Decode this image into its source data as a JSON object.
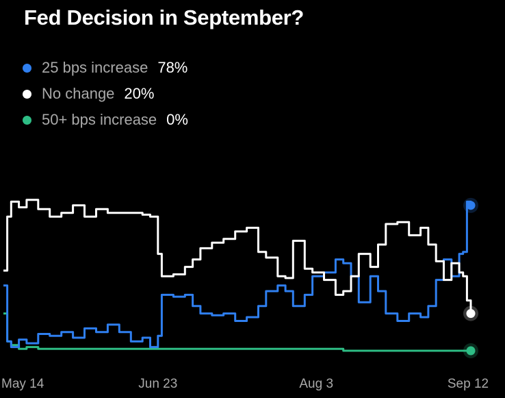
{
  "title": "Fed Decision in September?",
  "colors": {
    "background": "#000000",
    "increase_25": "#2f7ff0",
    "no_change": "#ffffff",
    "increase_50plus": "#2ebd85"
  },
  "legend": [
    {
      "label": "25 bps increase",
      "value": "78%",
      "color": "#2f7ff0"
    },
    {
      "label": "No change",
      "value": "20%",
      "color": "#ffffff"
    },
    {
      "label": "50+ bps increase",
      "value": "0%",
      "color": "#2ebd85"
    }
  ],
  "chart_data": {
    "type": "line",
    "title": "Fed Decision in September?",
    "x_ticks": [
      "May 14",
      "Jun 23",
      "Aug 3",
      "Sep 12"
    ],
    "xlim": [
      "May 14",
      "Sep 12"
    ],
    "ylim": [
      0,
      100
    ],
    "grid": false,
    "legend_position": "top-left",
    "series": [
      {
        "name": "25 bps increase",
        "color": "#2f7ff0",
        "current": 78,
        "points": [
          [
            "May 14",
            35
          ],
          [
            "May 15",
            5
          ],
          [
            "May 16",
            2
          ],
          [
            "May 18",
            6
          ],
          [
            "May 20",
            4
          ],
          [
            "May 23",
            9
          ],
          [
            "May 26",
            8
          ],
          [
            "May 29",
            10
          ],
          [
            "Jun 1",
            7
          ],
          [
            "Jun 4",
            12
          ],
          [
            "Jun 7",
            10
          ],
          [
            "Jun 10",
            14
          ],
          [
            "Jun 13",
            10
          ],
          [
            "Jun 16",
            5
          ],
          [
            "Jun 19",
            7
          ],
          [
            "Jun 21",
            2
          ],
          [
            "Jun 23",
            8
          ],
          [
            "Jun 24",
            30
          ],
          [
            "Jun 27",
            29
          ],
          [
            "Jun 30",
            30
          ],
          [
            "Jul 2",
            24
          ],
          [
            "Jul 4",
            20
          ],
          [
            "Jul 7",
            19
          ],
          [
            "Jul 10",
            20
          ],
          [
            "Jul 13",
            16
          ],
          [
            "Jul 16",
            18
          ],
          [
            "Jul 19",
            24
          ],
          [
            "Jul 21",
            32
          ],
          [
            "Jul 24",
            35
          ],
          [
            "Jul 26",
            32
          ],
          [
            "Jul 28",
            24
          ],
          [
            "Jul 31",
            30
          ],
          [
            "Aug 2",
            40
          ],
          [
            "Aug 5",
            42
          ],
          [
            "Aug 8",
            49
          ],
          [
            "Aug 10",
            47
          ],
          [
            "Aug 12",
            40
          ],
          [
            "Aug 14",
            26
          ],
          [
            "Aug 17",
            40
          ],
          [
            "Aug 19",
            32
          ],
          [
            "Aug 21",
            20
          ],
          [
            "Aug 24",
            16
          ],
          [
            "Aug 27",
            20
          ],
          [
            "Aug 30",
            18
          ],
          [
            "Sep 1",
            24
          ],
          [
            "Sep 3",
            38
          ],
          [
            "Sep 5",
            49
          ],
          [
            "Sep 7",
            40
          ],
          [
            "Sep 9",
            52
          ],
          [
            "Sep 10",
            53
          ],
          [
            "Sep 11",
            80
          ],
          [
            "Sep 12",
            78
          ]
        ]
      },
      {
        "name": "No change",
        "color": "#ffffff",
        "current": 20,
        "points": [
          [
            "May 14",
            43
          ],
          [
            "May 15",
            72
          ],
          [
            "May 16",
            80
          ],
          [
            "May 18",
            77
          ],
          [
            "May 20",
            81
          ],
          [
            "May 23",
            76
          ],
          [
            "May 26",
            72
          ],
          [
            "May 29",
            74
          ],
          [
            "Jun 1",
            78
          ],
          [
            "Jun 4",
            72
          ],
          [
            "Jun 7",
            76
          ],
          [
            "Jun 10",
            74
          ],
          [
            "Jun 13",
            74
          ],
          [
            "Jun 16",
            74
          ],
          [
            "Jun 19",
            73
          ],
          [
            "Jun 21",
            72
          ],
          [
            "Jun 23",
            52
          ],
          [
            "Jun 24",
            40
          ],
          [
            "Jun 27",
            41
          ],
          [
            "Jun 30",
            45
          ],
          [
            "Jul 2",
            49
          ],
          [
            "Jul 4",
            55
          ],
          [
            "Jul 7",
            58
          ],
          [
            "Jul 10",
            60
          ],
          [
            "Jul 13",
            64
          ],
          [
            "Jul 16",
            66
          ],
          [
            "Jul 19",
            53
          ],
          [
            "Jul 21",
            50
          ],
          [
            "Jul 24",
            40
          ],
          [
            "Jul 26",
            39
          ],
          [
            "Jul 28",
            59
          ],
          [
            "Jul 31",
            44
          ],
          [
            "Aug 2",
            42
          ],
          [
            "Aug 5",
            38
          ],
          [
            "Aug 8",
            30
          ],
          [
            "Aug 10",
            32
          ],
          [
            "Aug 12",
            40
          ],
          [
            "Aug 14",
            52
          ],
          [
            "Aug 17",
            45
          ],
          [
            "Aug 19",
            57
          ],
          [
            "Aug 21",
            68
          ],
          [
            "Aug 24",
            69
          ],
          [
            "Aug 27",
            62
          ],
          [
            "Aug 30",
            66
          ],
          [
            "Sep 1",
            57
          ],
          [
            "Sep 3",
            48
          ],
          [
            "Sep 5",
            38
          ],
          [
            "Sep 7",
            47
          ],
          [
            "Sep 9",
            42
          ],
          [
            "Sep 10",
            40
          ],
          [
            "Sep 11",
            27
          ],
          [
            "Sep 12",
            20
          ]
        ]
      },
      {
        "name": "50+ bps increase",
        "color": "#2ebd85",
        "current": 0,
        "points": [
          [
            "May 14",
            20
          ],
          [
            "May 15",
            5
          ],
          [
            "May 16",
            3
          ],
          [
            "May 18",
            1
          ],
          [
            "May 20",
            2
          ],
          [
            "May 23",
            1
          ],
          [
            "May 26",
            1
          ],
          [
            "May 29",
            1
          ],
          [
            "Jun 1",
            1
          ],
          [
            "Jun 4",
            1
          ],
          [
            "Jun 7",
            1
          ],
          [
            "Jun 10",
            1
          ],
          [
            "Jun 13",
            1
          ],
          [
            "Jun 16",
            1
          ],
          [
            "Jun 19",
            1
          ],
          [
            "Jun 21",
            1
          ],
          [
            "Jun 23",
            1
          ],
          [
            "Jun 24",
            1
          ],
          [
            "Jun 27",
            1
          ],
          [
            "Jun 30",
            1
          ],
          [
            "Jul 2",
            1
          ],
          [
            "Jul 4",
            1
          ],
          [
            "Jul 7",
            1
          ],
          [
            "Jul 10",
            1
          ],
          [
            "Jul 13",
            1
          ],
          [
            "Jul 16",
            1
          ],
          [
            "Jul 19",
            1
          ],
          [
            "Jul 21",
            1
          ],
          [
            "Jul 24",
            1
          ],
          [
            "Jul 26",
            1
          ],
          [
            "Jul 28",
            1
          ],
          [
            "Jul 31",
            1
          ],
          [
            "Aug 2",
            1
          ],
          [
            "Aug 5",
            1
          ],
          [
            "Aug 8",
            1
          ],
          [
            "Aug 10",
            0
          ],
          [
            "Aug 12",
            0
          ],
          [
            "Aug 14",
            0
          ],
          [
            "Aug 17",
            0
          ],
          [
            "Aug 19",
            0
          ],
          [
            "Aug 21",
            0
          ],
          [
            "Aug 24",
            0
          ],
          [
            "Aug 27",
            0
          ],
          [
            "Aug 30",
            0
          ],
          [
            "Sep 1",
            0
          ],
          [
            "Sep 3",
            0
          ],
          [
            "Sep 5",
            0
          ],
          [
            "Sep 7",
            0
          ],
          [
            "Sep 9",
            0
          ],
          [
            "Sep 10",
            0
          ],
          [
            "Sep 11",
            0
          ],
          [
            "Sep 12",
            0
          ]
        ]
      }
    ]
  }
}
